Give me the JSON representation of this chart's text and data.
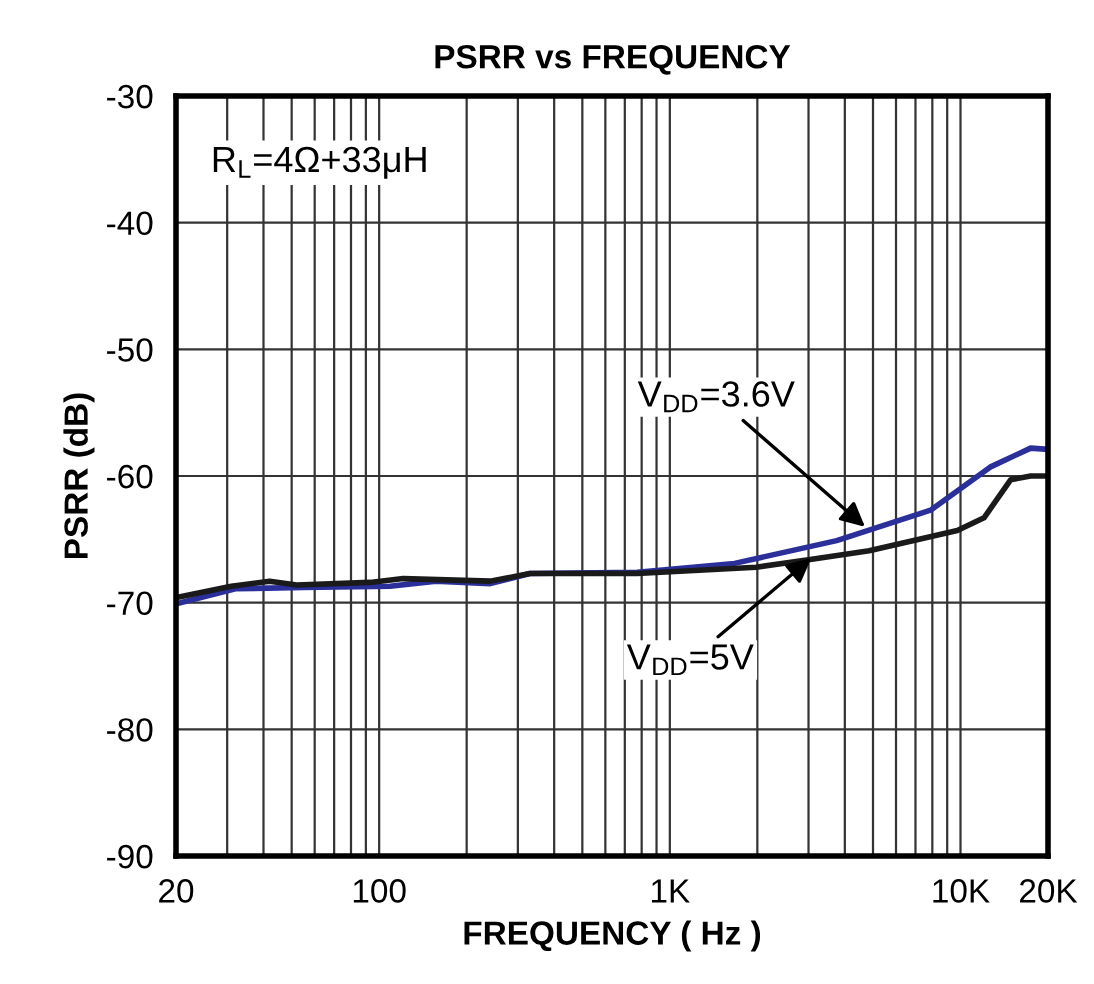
{
  "chart_data": {
    "type": "line",
    "title": "PSRR vs FREQUENCY",
    "xlabel": "FREQUENCY ( Hz )",
    "ylabel": "PSRR (dB)",
    "log": "x",
    "grid": true,
    "marker": "none",
    "line_style": "solid",
    "xlim": [
      20,
      20000
    ],
    "ylim": [
      -90,
      -30
    ],
    "xticks": [
      20,
      {
        "value": 30,
        "label": null
      },
      {
        "value": 40,
        "label": null
      },
      {
        "value": 50,
        "label": null
      },
      {
        "value": 60,
        "label": null
      },
      {
        "value": 70,
        "label": null
      },
      {
        "value": 80,
        "label": null
      },
      {
        "value": 90,
        "label": null
      },
      100,
      {
        "value": 200,
        "label": null
      },
      {
        "value": 300,
        "label": null
      },
      {
        "value": 400,
        "label": null
      },
      {
        "value": 500,
        "label": null
      },
      {
        "value": 600,
        "label": null
      },
      {
        "value": 700,
        "label": null
      },
      {
        "value": 800,
        "label": null
      },
      {
        "value": 900,
        "label": null
      },
      {
        "value": 1000,
        "label": "1K"
      },
      {
        "value": 2000,
        "label": null
      },
      {
        "value": 3000,
        "label": null
      },
      {
        "value": 4000,
        "label": null
      },
      {
        "value": 5000,
        "label": null
      },
      {
        "value": 6000,
        "label": null
      },
      {
        "value": 7000,
        "label": null
      },
      {
        "value": 8000,
        "label": null
      },
      {
        "value": 9000,
        "label": null
      },
      {
        "value": 10000,
        "label": "10K"
      },
      {
        "value": 20000,
        "label": "20K"
      }
    ],
    "yticks": [
      -90,
      -80,
      -70,
      -60,
      -50,
      -40,
      -30
    ],
    "series": [
      {
        "color": "#2b2f9a",
        "x": [
          20,
          32,
          55,
          109,
          157,
          241,
          330,
          772,
          1670,
          3750,
          7890,
          12640,
          17430,
          20000
        ],
        "values": [
          -70.1,
          -68.9,
          -68.8,
          -68.7,
          -68.3,
          -68.5,
          -67.7,
          -67.6,
          -66.9,
          -65.1,
          -62.7,
          -59.3,
          -57.8,
          -57.9
        ]
      },
      {
        "color": "#1a1a1a",
        "x": [
          20,
          31,
          42,
          52,
          93,
          121,
          241,
          330,
          772,
          1980,
          3040,
          4850,
          9750,
          12050,
          14870,
          17430,
          20000
        ],
        "values": [
          -69.6,
          -68.7,
          -68.3,
          -68.6,
          -68.4,
          -68.1,
          -68.3,
          -67.7,
          -67.7,
          -67.2,
          -66.6,
          -65.9,
          -64.3,
          -63.3,
          -60.3,
          -60.0,
          -60.0
        ]
      }
    ],
    "annotations": [
      "R$_{L}$=4Ω+33μH",
      {
        "text": "V$_{DD}$=3.6V",
        "x": 4850,
        "y": -64.3
      },
      {
        "text": "V$_{DD}$=5V",
        "x": 3170,
        "y": -66.2
      }
    ]
  }
}
